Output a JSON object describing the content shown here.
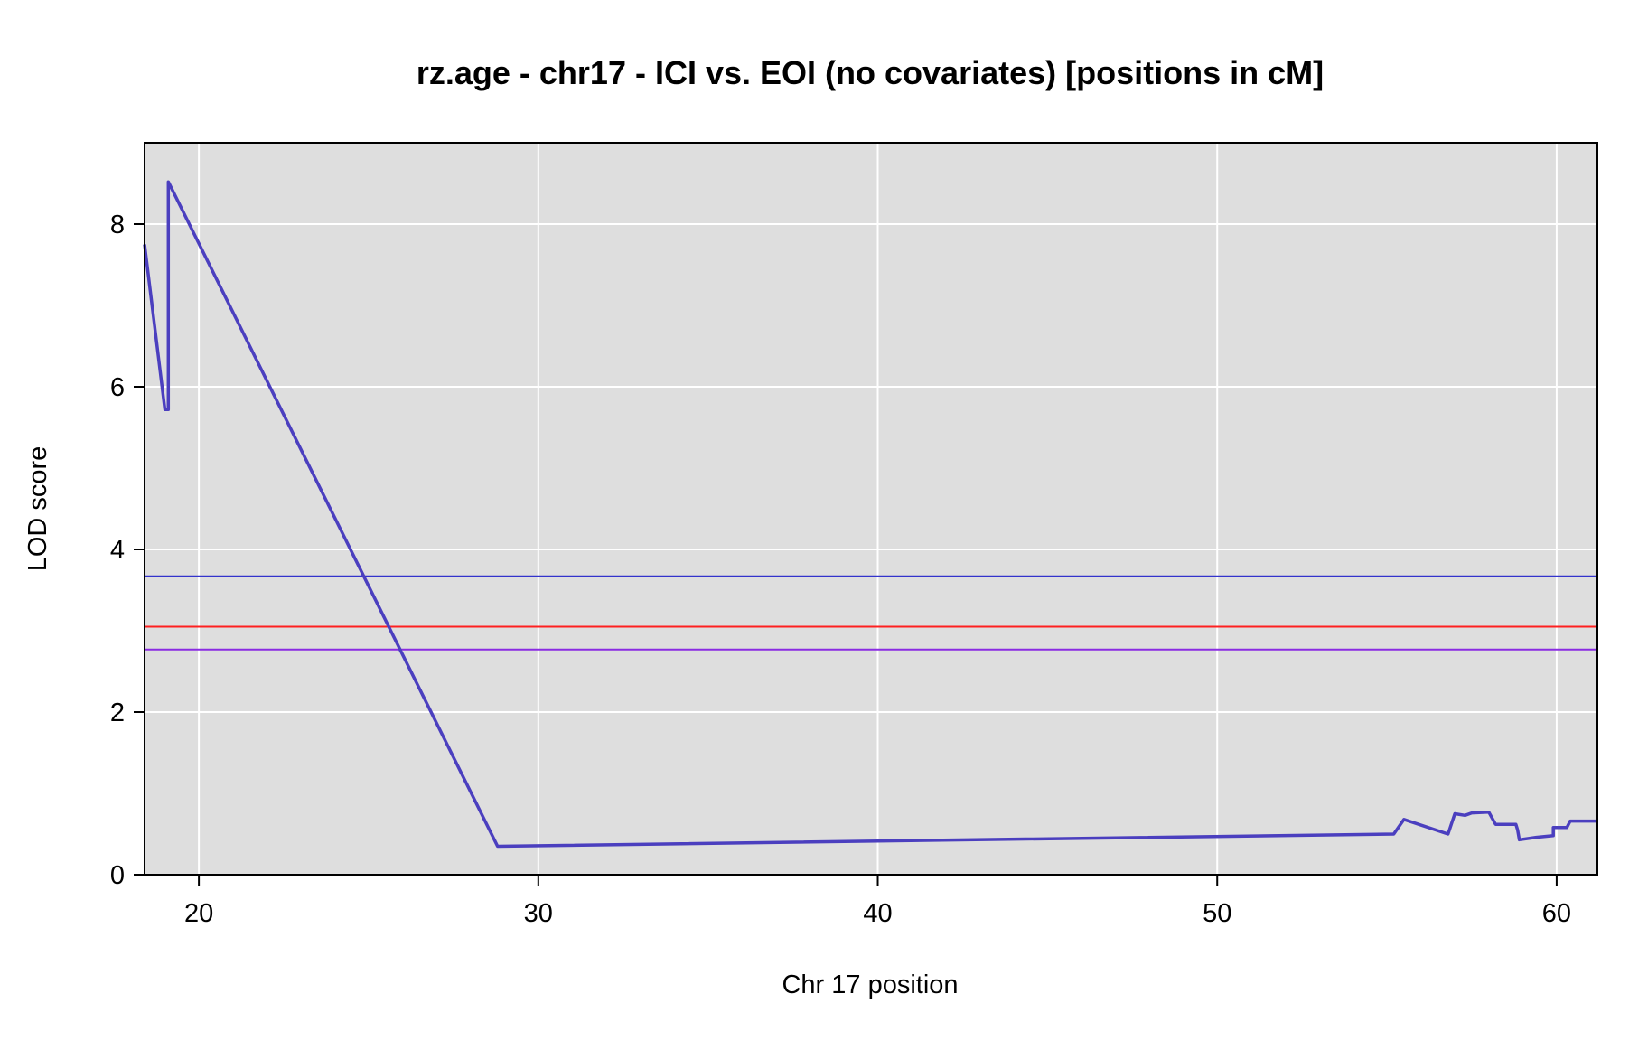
{
  "chart_data": {
    "type": "line",
    "title": "rz.age - chr17 - ICI vs. EOI (no covariates) [positions in cM]",
    "xlabel": "Chr 17 position",
    "ylabel": "LOD score",
    "xlim": [
      18.4,
      61.2
    ],
    "ylim": [
      0,
      9
    ],
    "xticks": [
      20,
      30,
      40,
      50,
      60
    ],
    "yticks": [
      0,
      2,
      4,
      6,
      8
    ],
    "grid": true,
    "background_color": "#dedede",
    "series": [
      {
        "color": "#4b3fbf",
        "x": [
          18.4,
          19.0,
          19.1,
          19.1,
          28.8,
          55.2,
          55.5,
          56.8,
          57.0,
          57.3,
          57.5,
          58.0,
          58.2,
          58.8,
          58.85,
          58.9,
          59.4,
          59.9,
          59.9,
          60.3,
          60.4,
          61.2
        ],
        "y": [
          7.75,
          5.72,
          5.72,
          8.52,
          0.35,
          0.5,
          0.68,
          0.5,
          0.75,
          0.73,
          0.76,
          0.77,
          0.62,
          0.62,
          0.55,
          0.43,
          0.46,
          0.48,
          0.58,
          0.58,
          0.66,
          0.66
        ]
      }
    ],
    "thresholds": [
      {
        "y": 3.67,
        "color": "#3333cc"
      },
      {
        "y": 3.05,
        "color": "#ff2020"
      },
      {
        "y": 2.77,
        "color": "#8a2be2"
      }
    ]
  }
}
